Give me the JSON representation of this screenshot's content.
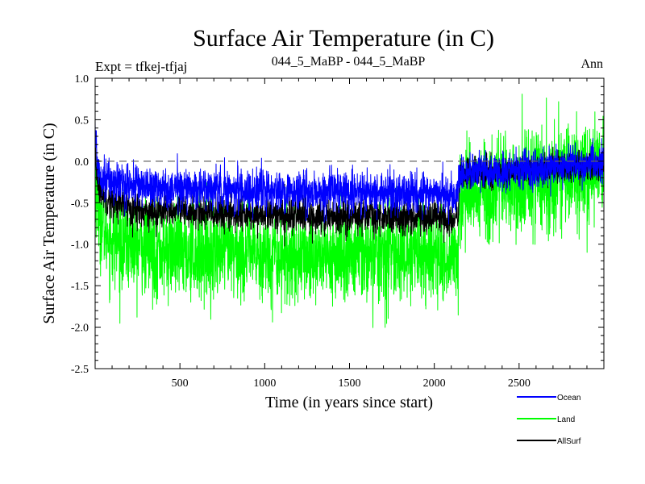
{
  "header": {
    "title": "Surface Air Temperature (in C)",
    "expt": "Expt = tfkej-tfjaj",
    "subtitle": "044_5_MaBP - 044_5_MaBP",
    "period": "Ann"
  },
  "chart_data": {
    "type": "line",
    "title": "Surface Air Temperature (in C)",
    "xlabel": "Time (in years since start)",
    "ylabel": "Surface Air Temperature (in C)",
    "xlim": [
      0,
      3000
    ],
    "ylim": [
      -2.5,
      1.0
    ],
    "xticks": [
      500,
      1000,
      1500,
      2000,
      2500
    ],
    "xtick_labels": [
      "500",
      "1000",
      "1500",
      "2000",
      "2500"
    ],
    "yticks": [
      -2.5,
      -2.0,
      -1.5,
      -1.0,
      -0.5,
      0.0,
      0.5,
      1.0
    ],
    "ytick_labels": [
      "-2.5",
      "-2.0",
      "-1.5",
      "-1.0",
      "-0.5",
      "0.0",
      "0.5",
      "1.0"
    ],
    "zero_line": true,
    "grid": false,
    "legend_position": "below-right",
    "series": [
      {
        "name": "Land",
        "color": "#00ff00",
        "x": [
          0,
          20,
          50,
          100,
          200,
          300,
          400,
          600,
          800,
          1000,
          1200,
          1400,
          1600,
          1800,
          2000,
          2140,
          2150,
          2200,
          2400,
          2600,
          2800,
          3000
        ],
        "y": [
          -0.2,
          -0.6,
          -0.8,
          -0.95,
          -1.0,
          -1.05,
          -1.1,
          -1.1,
          -1.1,
          -1.12,
          -1.15,
          -1.15,
          -1.12,
          -1.12,
          -1.12,
          -1.15,
          -0.45,
          -0.35,
          -0.3,
          -0.25,
          -0.15,
          -0.1
        ],
        "noise": [
          0.28,
          0.28,
          0.28,
          0.28,
          0.28,
          0.28,
          0.28,
          0.28,
          0.28,
          0.28,
          0.28,
          0.28,
          0.28,
          0.28,
          0.28,
          0.28,
          0.3,
          0.3,
          0.3,
          0.3,
          0.3,
          0.3
        ]
      },
      {
        "name": "AllSurf",
        "color": "#000000",
        "x": [
          0,
          20,
          50,
          100,
          200,
          300,
          400,
          600,
          800,
          1000,
          1200,
          1400,
          1600,
          1800,
          2000,
          2140,
          2150,
          2200,
          2400,
          2600,
          2800,
          3000
        ],
        "y": [
          0.0,
          -0.3,
          -0.4,
          -0.5,
          -0.55,
          -0.6,
          -0.6,
          -0.62,
          -0.63,
          -0.65,
          -0.66,
          -0.67,
          -0.66,
          -0.66,
          -0.67,
          -0.7,
          -0.18,
          -0.15,
          -0.13,
          -0.1,
          -0.06,
          -0.04
        ],
        "noise": [
          0.1,
          0.1,
          0.1,
          0.1,
          0.1,
          0.1,
          0.1,
          0.1,
          0.1,
          0.1,
          0.1,
          0.1,
          0.1,
          0.1,
          0.1,
          0.1,
          0.09,
          0.09,
          0.09,
          0.09,
          0.09,
          0.09
        ]
      },
      {
        "name": "Ocean",
        "color": "#0000ff",
        "x": [
          0,
          10,
          30,
          60,
          100,
          200,
          300,
          400,
          600,
          800,
          1000,
          1200,
          1400,
          1600,
          1800,
          2000,
          2140,
          2150,
          2200,
          2400,
          2600,
          2800,
          3000
        ],
        "y": [
          0.45,
          0.0,
          -0.15,
          -0.2,
          -0.25,
          -0.28,
          -0.3,
          -0.32,
          -0.33,
          -0.34,
          -0.36,
          -0.38,
          -0.38,
          -0.37,
          -0.38,
          -0.4,
          -0.42,
          -0.15,
          -0.13,
          -0.12,
          -0.1,
          -0.05,
          -0.03
        ],
        "noise": [
          0.12,
          0.12,
          0.12,
          0.12,
          0.12,
          0.12,
          0.12,
          0.12,
          0.12,
          0.12,
          0.12,
          0.12,
          0.12,
          0.12,
          0.12,
          0.12,
          0.12,
          0.11,
          0.11,
          0.11,
          0.11,
          0.11,
          0.11
        ]
      }
    ]
  }
}
